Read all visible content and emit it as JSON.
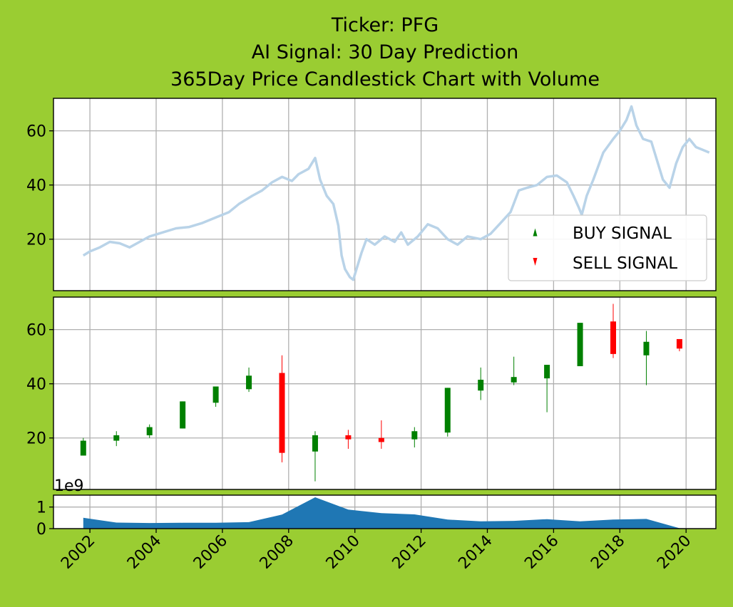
{
  "chart_data": {
    "type": "candlestick",
    "title_lines": [
      "Ticker: PFG",
      "AI Signal: 30 Day Prediction",
      "365Day Price Candlestick Chart with Volume"
    ],
    "x_axis": {
      "ticks": [
        "2002",
        "2004",
        "2006",
        "2008",
        "2010",
        "2012",
        "2014",
        "2016",
        "2018",
        "2020"
      ],
      "range": [
        2000.9,
        2020.9
      ]
    },
    "price_panel": {
      "ylim": [
        1,
        72
      ],
      "yticks": [
        "20",
        "40",
        "60"
      ],
      "grid": true,
      "line_color": "#b9d3e8",
      "line_series": [
        [
          2001.8,
          14
        ],
        [
          2002.0,
          15.5
        ],
        [
          2002.3,
          17
        ],
        [
          2002.6,
          19
        ],
        [
          2002.9,
          18.5
        ],
        [
          2003.2,
          17
        ],
        [
          2003.5,
          19
        ],
        [
          2003.8,
          21
        ],
        [
          2004.2,
          22.5
        ],
        [
          2004.6,
          24
        ],
        [
          2005.0,
          24.5
        ],
        [
          2005.4,
          26
        ],
        [
          2005.8,
          28
        ],
        [
          2006.2,
          30
        ],
        [
          2006.5,
          33
        ],
        [
          2006.9,
          36
        ],
        [
          2007.2,
          38
        ],
        [
          2007.5,
          41
        ],
        [
          2007.8,
          43
        ],
        [
          2008.1,
          41.5
        ],
        [
          2008.3,
          44
        ],
        [
          2008.6,
          46
        ],
        [
          2008.8,
          50
        ],
        [
          2008.95,
          42
        ],
        [
          2009.15,
          36
        ],
        [
          2009.35,
          33
        ],
        [
          2009.5,
          25
        ],
        [
          2009.6,
          14
        ],
        [
          2009.7,
          9
        ],
        [
          2009.85,
          6
        ],
        [
          2009.95,
          5
        ],
        [
          2010.05,
          9
        ],
        [
          2010.2,
          15
        ],
        [
          2010.35,
          20
        ],
        [
          2010.6,
          18
        ],
        [
          2010.9,
          21
        ],
        [
          2011.2,
          19
        ],
        [
          2011.4,
          22.5
        ],
        [
          2011.6,
          18
        ],
        [
          2011.9,
          21
        ],
        [
          2012.2,
          25.5
        ],
        [
          2012.5,
          24
        ],
        [
          2012.8,
          20
        ],
        [
          2013.1,
          18
        ],
        [
          2013.4,
          21
        ],
        [
          2013.8,
          20
        ],
        [
          2014.1,
          22
        ],
        [
          2014.4,
          26
        ],
        [
          2014.7,
          30
        ],
        [
          2014.95,
          38
        ],
        [
          2015.2,
          39
        ],
        [
          2015.5,
          40
        ],
        [
          2015.8,
          43
        ],
        [
          2016.1,
          43.5
        ],
        [
          2016.4,
          41
        ],
        [
          2016.6,
          36
        ],
        [
          2016.75,
          32
        ],
        [
          2016.85,
          29
        ],
        [
          2017.0,
          36
        ],
        [
          2017.2,
          42
        ],
        [
          2017.5,
          52
        ],
        [
          2017.8,
          57
        ],
        [
          2018.0,
          60
        ],
        [
          2018.2,
          64
        ],
        [
          2018.35,
          69
        ],
        [
          2018.5,
          62
        ],
        [
          2018.7,
          57
        ],
        [
          2018.95,
          56
        ],
        [
          2019.15,
          48
        ],
        [
          2019.3,
          42
        ],
        [
          2019.5,
          39
        ],
        [
          2019.7,
          48
        ],
        [
          2019.9,
          54
        ],
        [
          2020.1,
          57
        ],
        [
          2020.3,
          54
        ],
        [
          2020.5,
          53
        ],
        [
          2020.7,
          52
        ]
      ],
      "legend": {
        "placement": "lower right",
        "entries": [
          {
            "label": "BUY SIGNAL",
            "marker": "triangle-up",
            "color": "#008000"
          },
          {
            "label": "SELL SIGNAL",
            "marker": "triangle-down",
            "color": "#ff0000"
          }
        ]
      }
    },
    "candle_panel": {
      "ylim": [
        1,
        72
      ],
      "yticks": [
        "20",
        "40",
        "60"
      ],
      "grid": true,
      "up_color": "#008000",
      "down_color": "#ff0000",
      "candles": [
        {
          "x": 2001.8,
          "open": 13.5,
          "close": 19,
          "high": 20,
          "low": 13.5
        },
        {
          "x": 2002.8,
          "open": 19,
          "close": 21,
          "high": 22.5,
          "low": 17
        },
        {
          "x": 2003.8,
          "open": 21,
          "close": 24,
          "high": 25,
          "low": 20
        },
        {
          "x": 2004.8,
          "open": 23.5,
          "close": 33.5,
          "high": 33.5,
          "low": 23.5
        },
        {
          "x": 2005.8,
          "open": 33,
          "close": 39,
          "high": 39,
          "low": 31.5
        },
        {
          "x": 2006.8,
          "open": 38,
          "close": 43,
          "high": 46,
          "low": 37
        },
        {
          "x": 2007.8,
          "open": 44,
          "close": 14.5,
          "high": 50.5,
          "low": 11
        },
        {
          "x": 2008.8,
          "open": 15,
          "close": 21,
          "high": 22.5,
          "low": 4
        },
        {
          "x": 2009.8,
          "open": 21,
          "close": 19.5,
          "high": 23,
          "low": 16
        },
        {
          "x": 2010.8,
          "open": 20,
          "close": 18.5,
          "high": 26.5,
          "low": 16
        },
        {
          "x": 2011.8,
          "open": 19.5,
          "close": 22.5,
          "high": 24,
          "low": 16.5
        },
        {
          "x": 2012.8,
          "open": 22,
          "close": 38.5,
          "high": 38.5,
          "low": 20.5
        },
        {
          "x": 2013.8,
          "open": 37.5,
          "close": 41.5,
          "high": 46,
          "low": 34
        },
        {
          "x": 2014.8,
          "open": 40.5,
          "close": 42.5,
          "high": 50,
          "low": 39.5
        },
        {
          "x": 2015.8,
          "open": 42,
          "close": 47,
          "high": 47,
          "low": 29.5
        },
        {
          "x": 2016.8,
          "open": 46.5,
          "close": 62.5,
          "high": 62.5,
          "low": 46.5
        },
        {
          "x": 2017.8,
          "open": 63,
          "close": 51,
          "high": 69.5,
          "low": 49.5
        },
        {
          "x": 2018.8,
          "open": 50.5,
          "close": 55.5,
          "high": 59.5,
          "low": 39.5
        },
        {
          "x": 2019.8,
          "open": 56.5,
          "close": 53,
          "high": 56.5,
          "low": 52
        }
      ]
    },
    "volume_panel": {
      "offset_label": "1e9",
      "ylim": [
        0,
        1.55
      ],
      "yticks": [
        "0",
        "1"
      ],
      "grid": true,
      "fill_color": "#1f77b4",
      "values": [
        [
          2001.8,
          0.5
        ],
        [
          2002.8,
          0.28
        ],
        [
          2003.8,
          0.26
        ],
        [
          2004.8,
          0.27
        ],
        [
          2005.8,
          0.27
        ],
        [
          2006.8,
          0.3
        ],
        [
          2007.8,
          0.65
        ],
        [
          2008.8,
          1.45
        ],
        [
          2009.8,
          0.88
        ],
        [
          2010.8,
          0.72
        ],
        [
          2011.8,
          0.66
        ],
        [
          2012.8,
          0.42
        ],
        [
          2013.8,
          0.34
        ],
        [
          2014.8,
          0.36
        ],
        [
          2015.8,
          0.44
        ],
        [
          2016.8,
          0.34
        ],
        [
          2017.8,
          0.42
        ],
        [
          2018.8,
          0.45
        ],
        [
          2019.8,
          0.02
        ],
        [
          2020.9,
          0.0
        ]
      ]
    }
  }
}
